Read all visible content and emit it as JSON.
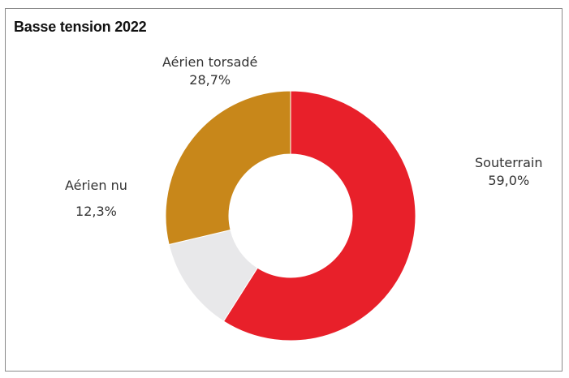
{
  "chart_data": {
    "type": "pie",
    "donut": true,
    "title": "Basse tension 2022",
    "start_angle_deg": 0,
    "direction": "clockwise",
    "slices": [
      {
        "label": "Souterrain",
        "value": 59.0,
        "value_text": "59,0%",
        "color": "#e8202a"
      },
      {
        "label": "Aérien nu",
        "value": 12.3,
        "value_text": "12,3%",
        "color": "#e8e8ea"
      },
      {
        "label": "Aérien torsadé",
        "value": 28.7,
        "value_text": "28,7%",
        "color": "#c8871a"
      }
    ],
    "legend": "none",
    "grid": false
  }
}
